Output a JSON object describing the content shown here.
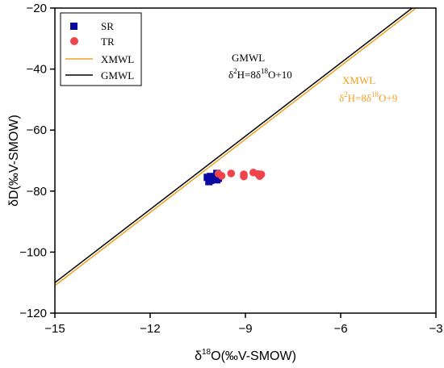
{
  "colors": {
    "sr": "#0a0aa0",
    "tr": "#f0444a",
    "xmwl": "#f0a020",
    "gmwl": "#000000",
    "axis": "#000000"
  },
  "chart_data": {
    "type": "scatter",
    "xlabel_prefix": "δ",
    "xlabel_sup": "18",
    "xlabel_suffix": "O(‰V-SMOW)",
    "ylabel": "δD(‰V-SMOW)",
    "xlim": [
      -15,
      -3
    ],
    "ylim": [
      -120,
      -20
    ],
    "xticks": [
      -15,
      -12,
      -9,
      -6,
      -3
    ],
    "yticks": [
      -120,
      -100,
      -80,
      -60,
      -40,
      -20
    ],
    "grid": false,
    "legend_placement": "top-left",
    "legend": [
      "SR",
      "TR",
      "XMWL",
      "GMWL"
    ],
    "series": [
      {
        "name": "SR",
        "kind": "points",
        "marker": "square",
        "color_key": "sr",
        "points": [
          [
            -10.1,
            -75.2
          ],
          [
            -10.0,
            -75.8
          ],
          [
            -9.9,
            -76.3
          ],
          [
            -10.1,
            -76.5
          ],
          [
            -10.2,
            -75.5
          ],
          [
            -9.9,
            -74.2
          ],
          [
            -9.85,
            -75.8
          ],
          [
            -10.15,
            -76.9
          ]
        ]
      },
      {
        "name": "TR",
        "kind": "points",
        "marker": "circle",
        "color_key": "tr",
        "points": [
          [
            -9.85,
            -74.3
          ],
          [
            -9.75,
            -75.0
          ],
          [
            -9.45,
            -74.2
          ],
          [
            -9.05,
            -74.5
          ],
          [
            -9.05,
            -75.2
          ],
          [
            -8.75,
            -73.9
          ],
          [
            -8.6,
            -74.4
          ],
          [
            -8.55,
            -75.1
          ],
          [
            -8.5,
            -74.5
          ]
        ]
      },
      {
        "name": "XMWL",
        "kind": "line",
        "color_key": "xmwl",
        "slope": 8,
        "intercept": 9
      },
      {
        "name": "GMWL",
        "kind": "line",
        "color_key": "gmwl",
        "slope": 8,
        "intercept": 10
      }
    ],
    "annotations": {
      "gmwl_name": "GMWL",
      "gmwl_eq_a": "δ",
      "gmwl_eq_a_sup": "2",
      "gmwl_eq_b": "H=8δ",
      "gmwl_eq_b_sup": "18",
      "gmwl_eq_c": "O+10",
      "xmwl_name": "XMWL",
      "xmwl_eq_a": "δ",
      "xmwl_eq_a_sup": "2",
      "xmwl_eq_b": "H=8δ",
      "xmwl_eq_b_sup": "18",
      "xmwl_eq_c": "O+9"
    }
  }
}
